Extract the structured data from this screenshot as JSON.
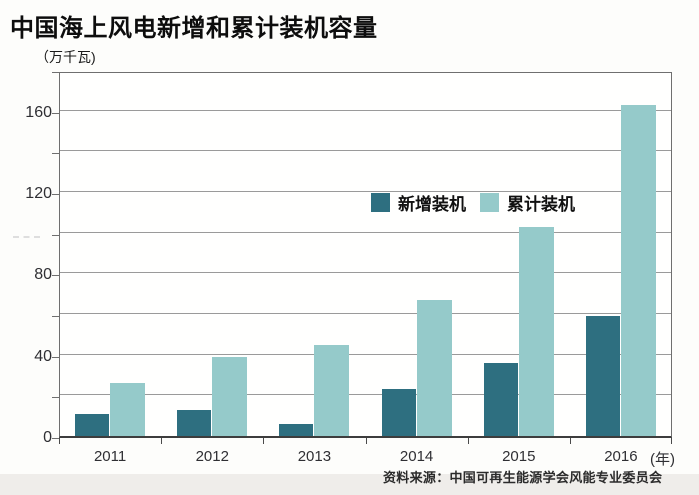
{
  "page": {
    "title": "中国海上风电新增和累计装机容量",
    "unit_label": "（万千瓦)",
    "x_axis_unit": "(年)",
    "source": "资料来源：中国可再生能源学会风能专业委员会"
  },
  "legend": {
    "items": [
      {
        "label": "新增装机",
        "color": "#2e6f80"
      },
      {
        "label": "累计装机",
        "color": "#95caca"
      }
    ]
  },
  "colors": {
    "new_installed": "#2e6f80",
    "cumulative_installed": "#95caca",
    "gridline": "#9a9a9a",
    "axis": "#3d3d3d"
  },
  "chart_data": {
    "type": "bar",
    "title": "中国海上风电新增和累计装机容量",
    "ylabel": "万千瓦",
    "xlabel": "年",
    "categories": [
      "2011",
      "2012",
      "2013",
      "2014",
      "2015",
      "2016"
    ],
    "series": [
      {
        "name": "新增装机",
        "color": "#2e6f80",
        "values": [
          11,
          13,
          6,
          23,
          36,
          59
        ]
      },
      {
        "name": "累计装机",
        "color": "#95caca",
        "values": [
          26,
          39,
          45,
          67,
          103,
          163
        ]
      }
    ],
    "ylim": [
      0,
      180
    ],
    "ytick_labels": [
      0,
      40,
      80,
      120,
      160
    ],
    "grid_interval": 20,
    "grid": true,
    "legend_position": "top-right-inside",
    "source": "资料来源：中国可再生能源学会风能专业委员会"
  }
}
